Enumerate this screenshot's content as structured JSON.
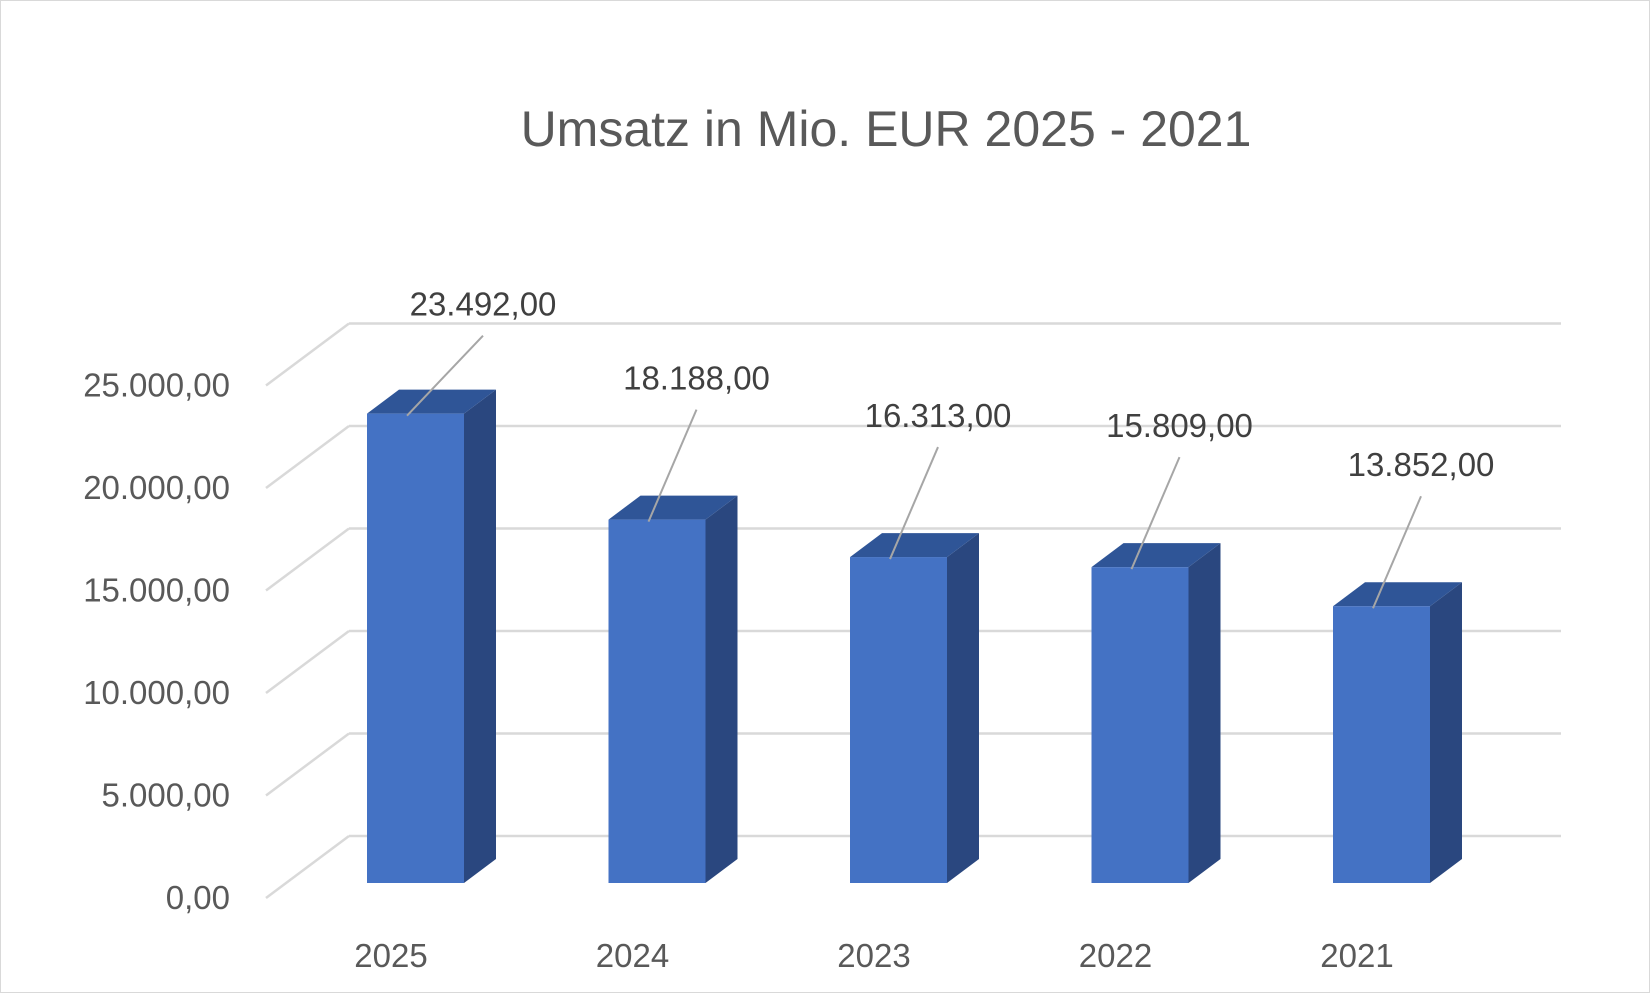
{
  "chart_data": {
    "type": "bar",
    "style": "3d-column",
    "title": "Umsatz in Mio. EUR 2025 - 2021",
    "xlabel": "",
    "ylabel": "",
    "categories": [
      "2025",
      "2024",
      "2023",
      "2022",
      "2021"
    ],
    "values": [
      23492,
      18188,
      16313,
      15809,
      13852
    ],
    "value_labels": [
      "23.492,00",
      "18.188,00",
      "16.313,00",
      "15.809,00",
      "13.852,00"
    ],
    "ylim": [
      0,
      25000
    ],
    "y_ticks": [
      0,
      5000,
      10000,
      15000,
      20000,
      25000
    ],
    "y_tick_labels": [
      "0,00",
      "5.000,00",
      "10.000,00",
      "15.000,00",
      "20.000,00",
      "25.000,00"
    ],
    "grid": true,
    "legend": "none",
    "colors": {
      "bar_front": "#4472c4",
      "bar_side": "#2a477f",
      "bar_top": "#2f5597",
      "grid": "#d9d9d9",
      "leader_line": "#a6a6a6"
    }
  }
}
